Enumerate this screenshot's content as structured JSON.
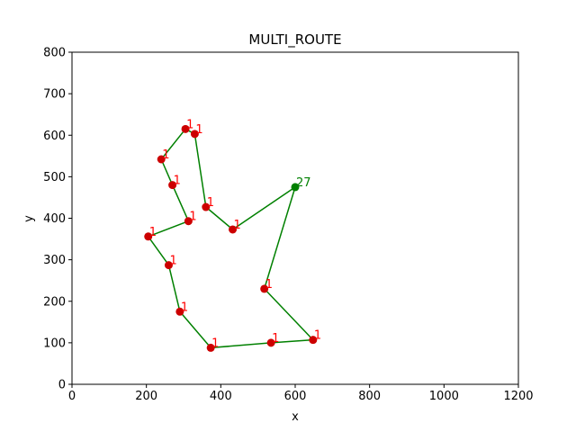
{
  "chart_data": {
    "type": "scatter",
    "title": "MULTI_ROUTE",
    "xlabel": "x",
    "ylabel": "y",
    "xlim": [
      0,
      1200
    ],
    "ylim": [
      0,
      800
    ],
    "xticks": [
      "0",
      "200",
      "400",
      "600",
      "800",
      "1000",
      "1200"
    ],
    "yticks": [
      "0",
      "100",
      "200",
      "300",
      "400",
      "500",
      "600",
      "700",
      "800"
    ],
    "grid": false,
    "route_color": "#008000",
    "point_color": "#cc0000",
    "label_color": "#ff0000",
    "depot_color": "#008000",
    "depot": {
      "x": 600,
      "y": 475,
      "label": "27"
    },
    "points": [
      {
        "x": 517,
        "y": 230,
        "label": "1"
      },
      {
        "x": 648,
        "y": 107,
        "label": "1"
      },
      {
        "x": 535,
        "y": 100,
        "label": "1"
      },
      {
        "x": 373,
        "y": 88,
        "label": "1"
      },
      {
        "x": 290,
        "y": 175,
        "label": "1"
      },
      {
        "x": 260,
        "y": 287,
        "label": "1"
      },
      {
        "x": 205,
        "y": 356,
        "label": "1"
      },
      {
        "x": 313,
        "y": 393,
        "label": "1"
      },
      {
        "x": 270,
        "y": 480,
        "label": "1"
      },
      {
        "x": 240,
        "y": 542,
        "label": "1"
      },
      {
        "x": 305,
        "y": 615,
        "label": "1"
      },
      {
        "x": 330,
        "y": 603,
        "label": "1"
      },
      {
        "x": 360,
        "y": 427,
        "label": "1"
      },
      {
        "x": 432,
        "y": 373,
        "label": "1"
      }
    ],
    "route_order": "depot, then points in listed order, back to depot"
  }
}
